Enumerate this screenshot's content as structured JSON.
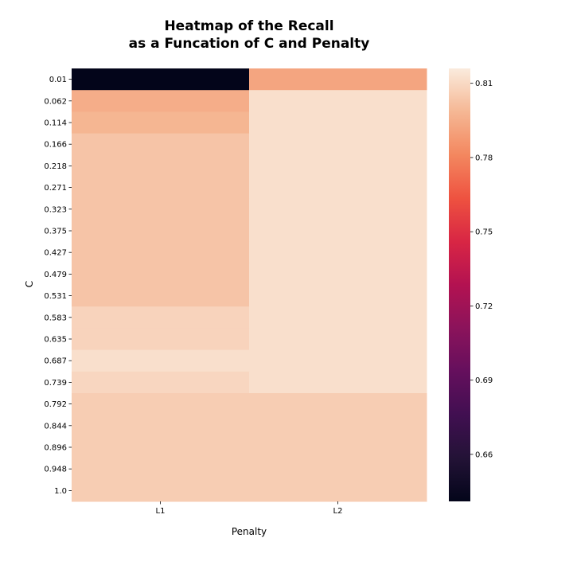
{
  "chart_data": {
    "type": "heatmap",
    "title_lines": [
      "Heatmap of the Recall",
      "as a Funcation of C and Penalty"
    ],
    "xlabel": "Penalty",
    "ylabel": "C",
    "x_categories": [
      "L1",
      "L2"
    ],
    "y_categories": [
      "0.01",
      "0.062",
      "0.114",
      "0.166",
      "0.218",
      "0.271",
      "0.323",
      "0.375",
      "0.427",
      "0.479",
      "0.531",
      "0.583",
      "0.635",
      "0.687",
      "0.739",
      "0.792",
      "0.844",
      "0.896",
      "0.948",
      "1.0"
    ],
    "values": [
      [
        0.641,
        0.792
      ],
      [
        0.795,
        0.812
      ],
      [
        0.798,
        0.812
      ],
      [
        0.803,
        0.812
      ],
      [
        0.803,
        0.812
      ],
      [
        0.803,
        0.812
      ],
      [
        0.803,
        0.812
      ],
      [
        0.803,
        0.812
      ],
      [
        0.803,
        0.812
      ],
      [
        0.803,
        0.812
      ],
      [
        0.803,
        0.812
      ],
      [
        0.808,
        0.812
      ],
      [
        0.808,
        0.812
      ],
      [
        0.812,
        0.812
      ],
      [
        0.809,
        0.812
      ],
      [
        0.806,
        0.806
      ],
      [
        0.806,
        0.806
      ],
      [
        0.806,
        0.806
      ],
      [
        0.806,
        0.806
      ],
      [
        0.806,
        0.806
      ]
    ],
    "colorbar": {
      "range": [
        0.641,
        0.816
      ],
      "ticks": [
        0.66,
        0.69,
        0.72,
        0.75,
        0.78,
        0.81
      ],
      "tick_labels": [
        "0.66",
        "0.69",
        "0.72",
        "0.75",
        "0.78",
        "0.81"
      ],
      "colormap": "rocket"
    }
  }
}
